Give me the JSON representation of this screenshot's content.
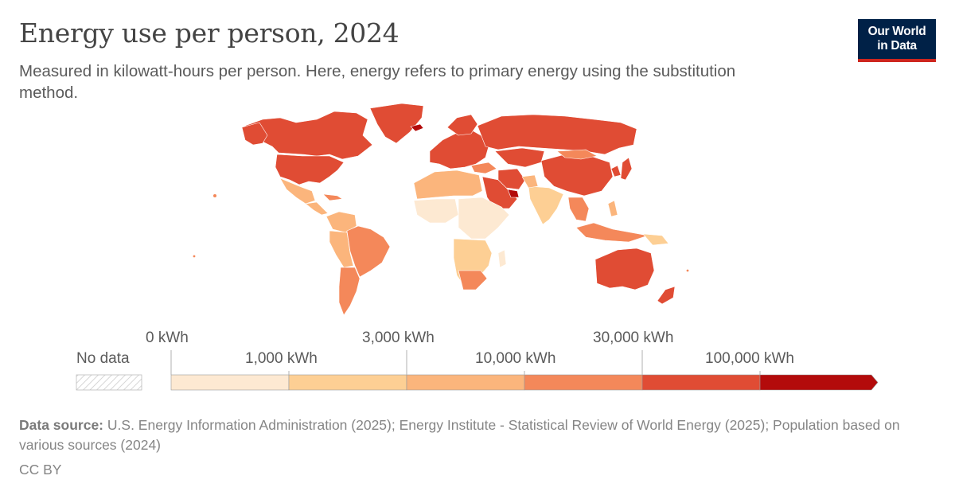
{
  "header": {
    "title": "Energy use per person, 2024",
    "subtitle": "Measured in kilowatt-hours per person. Here, energy refers to primary energy using the substitution method.",
    "logo_line1": "Our World",
    "logo_line2": "in Data"
  },
  "legend": {
    "no_data_label": "No data",
    "bins": [
      {
        "value": 0,
        "label": "0 kWh",
        "color": "#fde9d2"
      },
      {
        "value": 1000,
        "label": "1,000 kWh",
        "color": "#fdcf94"
      },
      {
        "value": 3000,
        "label": "3,000 kWh",
        "color": "#fbb57c"
      },
      {
        "value": 10000,
        "label": "10,000 kWh",
        "color": "#f4885a"
      },
      {
        "value": 30000,
        "label": "30,000 kWh",
        "color": "#e04c34"
      },
      {
        "value": 100000,
        "label": "100,000 kWh",
        "color": "#b30b0b"
      }
    ]
  },
  "footer": {
    "source_label": "Data source:",
    "source_text": "U.S. Energy Information Administration (2025); Energy Institute - Statistical Review of World Energy (2025); Population based on various sources (2024)",
    "license": "CC BY"
  },
  "colors": {
    "bin0": "#fde9d2",
    "bin1": "#fdcf94",
    "bin2": "#fbb57c",
    "bin3": "#f4885a",
    "bin4": "#e04c34",
    "bin5": "#b30b0b"
  }
}
